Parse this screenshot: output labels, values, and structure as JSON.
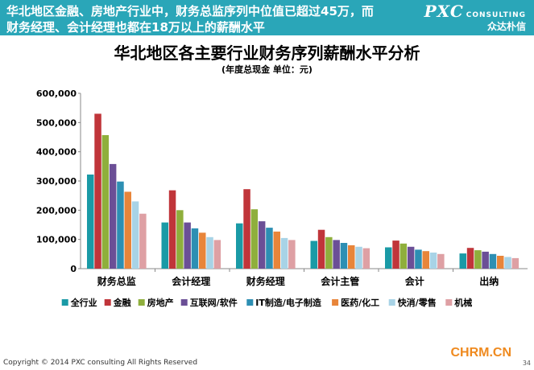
{
  "banner": {
    "line1": "华北地区金融、房地产行业中，财务总监序列中位值已超过45万，而",
    "line2": "财务经理、会计经理也都在18万以上的薪酬水平"
  },
  "logo": {
    "mark": "PXC",
    "sub": "CONSULTING",
    "cn": "众达朴信"
  },
  "chart_data": {
    "type": "bar",
    "title": "华北地区各主要行业财务序列薪酬水平分析",
    "subtitle": "(年度总现金 单位：元)",
    "ylim": [
      0,
      600000
    ],
    "yticks": [
      "0",
      "100,000",
      "200,000",
      "300,000",
      "400,000",
      "500,000",
      "600,000"
    ],
    "grid": false,
    "legend_position": "bottom",
    "categories": [
      "财务总监",
      "会计经理",
      "财务经理",
      "会计主管",
      "会计",
      "出纳"
    ],
    "series": [
      {
        "name": "全行业",
        "color": "#1a9aa6",
        "values": [
          322000,
          158000,
          155000,
          95000,
          73000,
          52000
        ]
      },
      {
        "name": "金融",
        "color": "#c0353a",
        "values": [
          530000,
          268000,
          272000,
          133000,
          96000,
          71000
        ]
      },
      {
        "name": "房地产",
        "color": "#8faf3c",
        "values": [
          457000,
          200000,
          203000,
          108000,
          86000,
          63000
        ]
      },
      {
        "name": "互联网/软件",
        "color": "#6b4f96",
        "values": [
          358000,
          158000,
          162000,
          98000,
          75000,
          58000
        ]
      },
      {
        "name": "IT制造/电子制造",
        "color": "#2d8fb3",
        "values": [
          298000,
          138000,
          140000,
          88000,
          65000,
          50000
        ]
      },
      {
        "name": "医药/化工",
        "color": "#e8853a",
        "values": [
          263000,
          123000,
          127000,
          80000,
          60000,
          44000
        ]
      },
      {
        "name": "快消/零售",
        "color": "#a8d3e6",
        "values": [
          230000,
          108000,
          105000,
          75000,
          55000,
          40000
        ]
      },
      {
        "name": "机械",
        "color": "#dea0a4",
        "values": [
          188000,
          98000,
          98000,
          70000,
          50000,
          36000
        ]
      }
    ]
  },
  "footer": {
    "copyright": "Copyright © 2014 PXC consulting All Rights Reserved",
    "brand": "CHRM.CN",
    "page": "34"
  }
}
